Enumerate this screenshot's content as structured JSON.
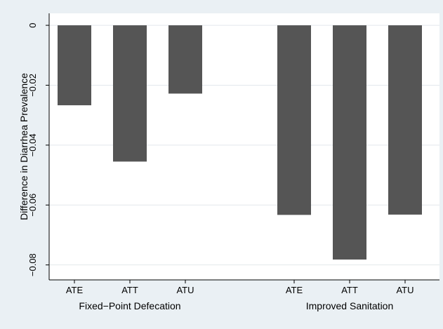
{
  "chart_data": {
    "type": "bar",
    "ylabel": "Difference in Diarrhea Prevalence",
    "ylim": [
      -0.085,
      0.004
    ],
    "y_ticks": [
      0,
      -0.02,
      -0.04,
      -0.06,
      -0.08
    ],
    "y_tick_labels": [
      "0",
      "−0.02",
      "−0.04",
      "−0.06",
      "−0.08"
    ],
    "grid": true,
    "groups": [
      {
        "label": "Fixed−Point Defecation",
        "categories": [
          "ATE",
          "ATT",
          "ATU"
        ],
        "values": [
          -0.0267,
          -0.0455,
          -0.0228
        ]
      },
      {
        "label": "Improved Sanitation",
        "categories": [
          "ATE",
          "ATT",
          "ATU"
        ],
        "values": [
          -0.0633,
          -0.0782,
          -0.0632
        ]
      }
    ],
    "colors": {
      "bar": "#555555",
      "background": "#eaf0f4",
      "plot_background": "#ffffff",
      "grid": "#e3e8ec"
    }
  }
}
